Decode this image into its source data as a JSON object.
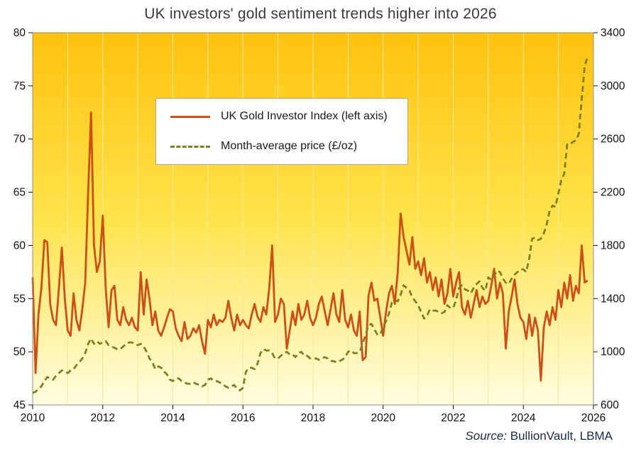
{
  "page": {
    "title": "UK investors' gold sentiment trends higher into 2026",
    "source_prefix": "Source:",
    "source_text": " BullionVault, LBMA"
  },
  "legend": {
    "items": [
      {
        "label": "UK Gold Investor Index (left axis)"
      },
      {
        "label": "Month-average price (£/oz)"
      }
    ]
  },
  "chart_data": {
    "type": "line",
    "title": "UK investors' gold sentiment trends higher into 2026",
    "x_range": [
      2010,
      2026
    ],
    "x_ticks": [
      2010,
      2012,
      2014,
      2016,
      2018,
      2020,
      2022,
      2024,
      2026
    ],
    "left_axis": {
      "range": [
        45,
        80
      ],
      "ticks": [
        45,
        50,
        55,
        60,
        65,
        70,
        75,
        80
      ]
    },
    "right_axis": {
      "range": [
        600,
        3400
      ],
      "ticks": [
        600,
        1000,
        1400,
        1800,
        2200,
        2600,
        3000,
        3400
      ]
    },
    "grid": "vertical-yearly",
    "grid_color": "#eee8a0",
    "border_color": "#8f8f8f",
    "tick_color": "#111111",
    "background_gradient": [
      "#ffc20e",
      "#ffe34b",
      "#fffde0"
    ],
    "legend_position": "upper-left-inside",
    "start_year": 2010,
    "points_per_year": 12,
    "series": [
      {
        "name": "UK Gold Investor Index (left axis)",
        "axis": "left",
        "style": "solid",
        "color": "#cc5016",
        "values": [
          57,
          48,
          53.5,
          56,
          60.5,
          60.3,
          54.5,
          53,
          52.5,
          56,
          59.8,
          55,
          52,
          51.5,
          55.5,
          53,
          52,
          54,
          56.5,
          65,
          72.5,
          60,
          57.5,
          58.5,
          62.8,
          56,
          52.3,
          55.8,
          56.2,
          53,
          52.5,
          54.2,
          53,
          52.5,
          53.2,
          52.3,
          52,
          57.5,
          53.5,
          56.8,
          55,
          52.5,
          53.8,
          52,
          51.5,
          52.3,
          53.2,
          54,
          53.8,
          52.2,
          51.5,
          51,
          52.8,
          51.2,
          51.5,
          52.2,
          51.8,
          52.5,
          51,
          49.8,
          53,
          52.3,
          53.5,
          52.5,
          53,
          52.8,
          53.2,
          54.8,
          53.2,
          52,
          53.5,
          52.5,
          53,
          52.5,
          52.2,
          53.5,
          54.5,
          53.3,
          52.8,
          54.2,
          53.5,
          56,
          60,
          52.8,
          53.5,
          55,
          54.5,
          50.3,
          52,
          53.8,
          52.5,
          54.5,
          53,
          53.5,
          54.8,
          53.2,
          52.5,
          53.2,
          54.5,
          55.2,
          53.8,
          52.5,
          54,
          55.5,
          53.5,
          52.8,
          55.8,
          53,
          52.3,
          53.5,
          52,
          51.5,
          53.8,
          49.2,
          49.5,
          55.3,
          56.5,
          54.8,
          55,
          53.3,
          51.5,
          53.8,
          55.5,
          56.2,
          54.5,
          57.5,
          63,
          60.8,
          59.5,
          58.2,
          60.8,
          57.8,
          58.5,
          57.2,
          58.8,
          56.5,
          57.5,
          55.8,
          57,
          55.2,
          56.8,
          54.5,
          55.5,
          57.8,
          55.2,
          56.5,
          57.5,
          54.2,
          53.5,
          54.8,
          53.2,
          54.5,
          55.8,
          54.2,
          55.2,
          54.5,
          54.8,
          56.2,
          57.8,
          55,
          56.5,
          55.5,
          50.3,
          53.8,
          55.2,
          56.8,
          54.5,
          53.2,
          52.8,
          51.2,
          53.5,
          51.5,
          53.2,
          52,
          47.3,
          52.3,
          53.8,
          52.5,
          54.2,
          53,
          55.8,
          54.2,
          56.5,
          55,
          57.2,
          54.8,
          56.2,
          55.5,
          60,
          56.5,
          56.7
        ]
      },
      {
        "name": "Month-average price (£/oz)",
        "axis": "right",
        "style": "dashed",
        "color": "#7f7f23",
        "values": [
          690,
          700,
          720,
          740,
          780,
          810,
          800,
          790,
          820,
          840,
          860,
          850,
          840,
          860,
          870,
          900,
          920,
          950,
          990,
          1060,
          1100,
          1060,
          1080,
          1060,
          1070,
          1080,
          1050,
          1040,
          1030,
          1020,
          1020,
          1040,
          1060,
          1070,
          1070,
          1060,
          1050,
          1060,
          1040,
          1000,
          950,
          920,
          870,
          890,
          880,
          850,
          830,
          790,
          780,
          800,
          800,
          780,
          770,
          760,
          760,
          770,
          760,
          750,
          740,
          750,
          790,
          800,
          780,
          780,
          770,
          760,
          740,
          730,
          740,
          750,
          720,
          710,
          730,
          850,
          880,
          880,
          870,
          910,
          990,
          1020,
          1010,
          1010,
          990,
          950,
          950,
          970,
          990,
          1000,
          980,
          980,
          960,
          990,
          1000,
          970,
          970,
          950,
          950,
          950,
          940,
          950,
          960,
          950,
          930,
          930,
          920,
          930,
          940,
          960,
          1000,
          1010,
          990,
          990,
          1000,
          1060,
          1130,
          1200,
          1210,
          1170,
          1130,
          1130,
          1190,
          1230,
          1290,
          1370,
          1390,
          1380,
          1430,
          1500,
          1480,
          1460,
          1410,
          1380,
          1350,
          1300,
          1250,
          1270,
          1320,
          1310,
          1310,
          1300,
          1290,
          1300,
          1350,
          1330,
          1330,
          1390,
          1480,
          1500,
          1470,
          1460,
          1440,
          1480,
          1510,
          1530,
          1480,
          1460,
          1560,
          1540,
          1570,
          1610,
          1600,
          1550,
          1520,
          1510,
          1550,
          1580,
          1600,
          1620,
          1620,
          1600,
          1700,
          1850,
          1860,
          1840,
          1850,
          1890,
          1960,
          2060,
          2100,
          2090,
          2190,
          2290,
          2340,
          2560,
          2560,
          2580,
          2590,
          2640,
          2900,
          3150,
          3220
        ]
      }
    ]
  }
}
